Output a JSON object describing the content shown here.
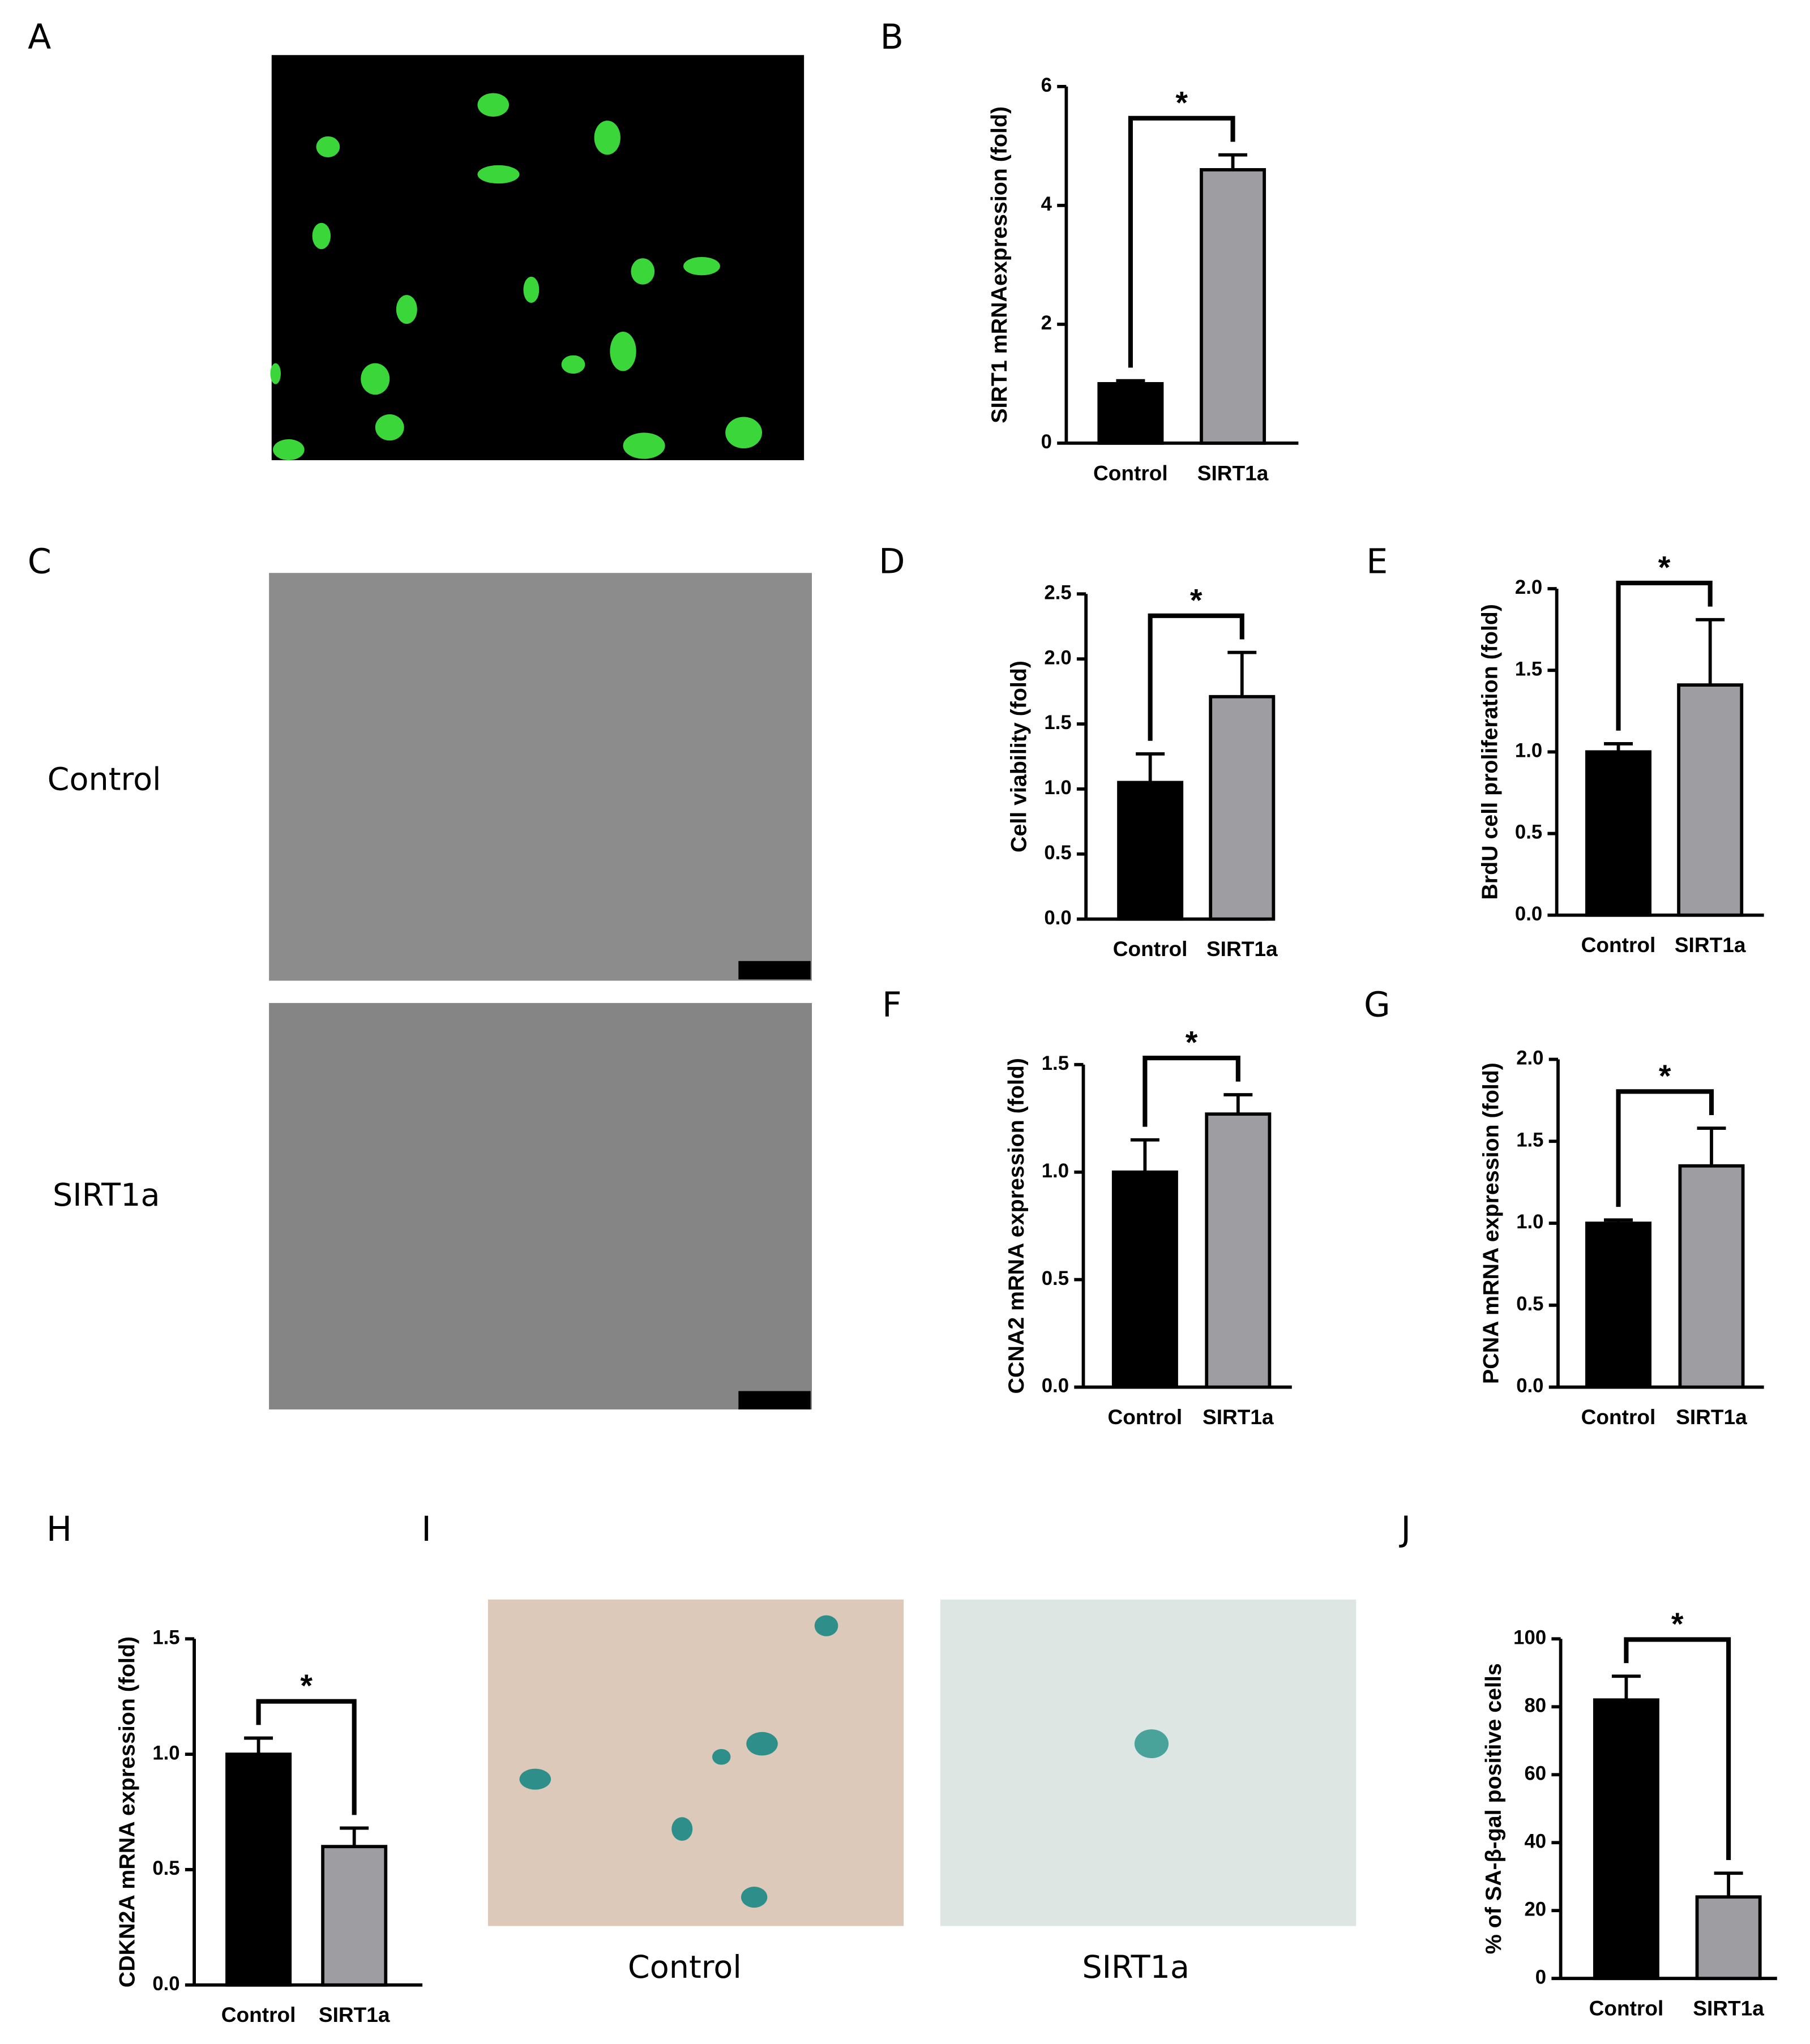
{
  "panel_letters": [
    "A",
    "B",
    "C",
    "D",
    "E",
    "F",
    "G",
    "H",
    "I",
    "J"
  ],
  "image_labels": [
    "Control",
    "SIRT1a",
    "Control",
    "SIRT1a"
  ],
  "chart_data": [
    {
      "type": "bar",
      "y_label": "SIRT1 mRNAexpression (fold)",
      "categories": [
        "Control",
        "SIRT1a"
      ],
      "values": [
        1.0,
        4.6
      ],
      "errors": [
        0.05,
        0.25
      ],
      "colors": [
        "#000000",
        "#9e9ea2"
      ],
      "ylim": [
        0,
        6
      ],
      "yticks": [
        0,
        2,
        4,
        6
      ],
      "annotation": "*"
    },
    {
      "type": "bar",
      "y_label": "Cell viability (fold)",
      "categories": [
        "Control",
        "SIRT1a"
      ],
      "values": [
        1.05,
        1.71
      ],
      "errors": [
        0.22,
        0.34
      ],
      "colors": [
        "#000000",
        "#9e9ea2"
      ],
      "ylim": [
        0,
        2.5
      ],
      "yticks": [
        {
          "value": 0,
          "label": "0.0"
        },
        0.5,
        {
          "value": 1,
          "label": "1.0"
        },
        1.5,
        {
          "value": 2,
          "label": "2.0"
        },
        2.5
      ],
      "annotation": "*"
    },
    {
      "type": "bar",
      "y_label": "BrdU cell proliferation (fold)",
      "categories": [
        "Control",
        "SIRT1a"
      ],
      "values": [
        1.0,
        1.41
      ],
      "errors": [
        0.05,
        0.4
      ],
      "colors": [
        "#000000",
        "#9e9ea2"
      ],
      "ylim": [
        0,
        2
      ],
      "yticks": [
        {
          "value": 0,
          "label": "0.0"
        },
        0.5,
        {
          "value": 1,
          "label": "1.0"
        },
        1.5,
        {
          "value": 2,
          "label": "2.0"
        }
      ],
      "annotation": "*"
    },
    {
      "type": "bar",
      "y_label": "CCNA2 mRNA expression (fold)",
      "categories": [
        "Control",
        "SIRT1a"
      ],
      "values": [
        1.0,
        1.27
      ],
      "errors": [
        0.15,
        0.09
      ],
      "colors": [
        "#000000",
        "#9e9ea2"
      ],
      "ylim": [
        0,
        1.5
      ],
      "yticks": [
        {
          "value": 0,
          "label": "0.0"
        },
        0.5,
        {
          "value": 1,
          "label": "1.0"
        },
        1.5
      ],
      "annotation": "*"
    },
    {
      "type": "bar",
      "y_label": "PCNA mRNA expression (fold)",
      "categories": [
        "Control",
        "SIRT1a"
      ],
      "values": [
        1.0,
        1.35
      ],
      "errors": [
        0.02,
        0.23
      ],
      "colors": [
        "#000000",
        "#9e9ea2"
      ],
      "ylim": [
        0,
        2
      ],
      "yticks": [
        {
          "value": 0,
          "label": "0.0"
        },
        0.5,
        {
          "value": 1,
          "label": "1.0"
        },
        1.5,
        {
          "value": 2,
          "label": "2.0"
        }
      ],
      "annotation": "*"
    },
    {
      "type": "bar",
      "y_label": "CDKN2A mRNA expression (fold)",
      "categories": [
        "Control",
        "SIRT1a"
      ],
      "values": [
        1.0,
        0.6
      ],
      "errors": [
        0.07,
        0.08
      ],
      "colors": [
        "#000000",
        "#9e9ea2"
      ],
      "ylim": [
        0,
        1.5
      ],
      "yticks": [
        {
          "value": 0,
          "label": "0.0"
        },
        0.5,
        {
          "value": 1,
          "label": "1.0"
        },
        1.5
      ],
      "annotation": "*"
    },
    {
      "type": "bar",
      "y_label": "% of SA-β-gal positive cells",
      "categories": [
        "Control",
        "SIRT1a"
      ],
      "values": [
        82,
        24
      ],
      "errors": [
        7,
        7
      ],
      "colors": [
        "#000000",
        "#9e9ea2"
      ],
      "ylim": [
        0,
        100
      ],
      "yticks": [
        0,
        20,
        40,
        60,
        80,
        100
      ],
      "annotation": "*"
    }
  ]
}
